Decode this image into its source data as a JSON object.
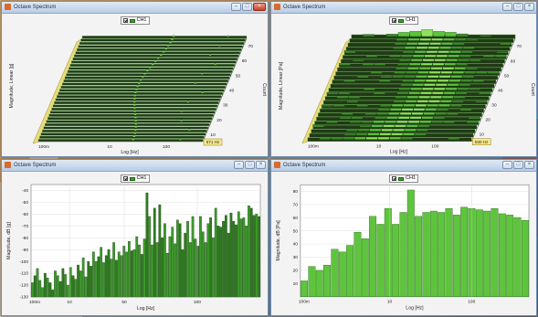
{
  "windows": [
    {
      "title": "Octave Spectrum",
      "legend": "CH1",
      "kind": "waterfall",
      "ylabel": "Magnitude, Linear [g]",
      "xlabel": "Log [Hz]",
      "zlabel": "Count",
      "xticks": [
        "100m",
        "10",
        "100"
      ],
      "zticks": [
        "10",
        "20",
        "30",
        "40",
        "50",
        "60",
        "70"
      ],
      "cursor_label": "571 Hz",
      "render_style": "sparse"
    },
    {
      "title": "Octave Spectrum",
      "legend": "CH1",
      "kind": "waterfall",
      "ylabel": "Magnitude, Linear [Pa]",
      "xlabel": "Log [Hz]",
      "zlabel": "Count",
      "xticks": [
        "100m",
        "10",
        "100"
      ],
      "zticks": [
        "10",
        "20",
        "30",
        "40",
        "50",
        "60",
        "70"
      ],
      "cursor_label": "500 Hz",
      "render_style": "dense"
    },
    {
      "title": "Octave Spectrum",
      "legend": "CH1",
      "kind": "bar",
      "ylabel": "Magnitude, dB [g]",
      "xlabel": "Log [Hz]",
      "xticks": [
        "100m",
        "10",
        "50",
        "100"
      ],
      "yticks": [
        "-40",
        "-50",
        "-60",
        "-70",
        "-80",
        "-90",
        "-100",
        "-110",
        "-120",
        "-130"
      ]
    },
    {
      "title": "Octave Spectrum",
      "legend": "CH1",
      "kind": "bar",
      "ylabel": "Magnitude, dB [Pa]",
      "xlabel": "Log [Hz]",
      "xticks": [
        "100m",
        "10",
        "100"
      ],
      "yticks": [
        "80",
        "70",
        "60",
        "50",
        "40",
        "30",
        "20",
        "10"
      ]
    }
  ],
  "chart_data": [
    {
      "type": "area",
      "title": "Octave Spectrum",
      "xlabel": "Log [Hz]",
      "ylabel": "Magnitude, Linear [g]",
      "zlabel": "Count",
      "x": [
        0.1,
        10,
        100
      ],
      "z": [
        10,
        20,
        30,
        40,
        50,
        60,
        70
      ],
      "legend": "CH1"
    },
    {
      "type": "area",
      "title": "Octave Spectrum",
      "xlabel": "Log [Hz]",
      "ylabel": "Magnitude, Linear [Pa]",
      "zlabel": "Count",
      "x": [
        0.1,
        10,
        100
      ],
      "z": [
        10,
        20,
        30,
        40,
        50,
        60,
        70
      ],
      "legend": "CH1"
    },
    {
      "type": "bar",
      "title": "Octave Spectrum",
      "xlabel": "Log [Hz]",
      "ylabel": "Magnitude, dB [g]",
      "ylim": [
        -130,
        -35
      ],
      "series": [
        {
          "name": "CH1",
          "values": [
            -118,
            -112,
            -106,
            -116,
            -122,
            -110,
            -114,
            -118,
            -124,
            -108,
            -112,
            -117,
            -106,
            -111,
            -120,
            -105,
            -112,
            -115,
            -103,
            -108,
            -97,
            -113,
            -100,
            -104,
            -92,
            -100,
            -96,
            -88,
            -101,
            -95,
            -90,
            -98,
            -84,
            -99,
            -92,
            -95,
            -87,
            -92,
            -83,
            -91,
            -90,
            -79,
            -86,
            -94,
            -81,
            -42,
            -62,
            -86,
            -55,
            -84,
            -52,
            -80,
            -68,
            -93,
            -79,
            -71,
            -85,
            -65,
            -68,
            -90,
            -76,
            -66,
            -84,
            -62,
            -81,
            -87,
            -62,
            -75,
            -84,
            -68,
            -63,
            -80,
            -55,
            -70,
            -71,
            -66,
            -61,
            -76,
            -59,
            -66,
            -69,
            -58,
            -64,
            -63,
            -70,
            -53,
            -55,
            -61,
            -60,
            -62
          ]
        }
      ]
    },
    {
      "type": "bar",
      "title": "Octave Spectrum",
      "xlabel": "Log [Hz]",
      "ylabel": "Magnitude, dB [Pa]",
      "ylim": [
        0,
        85
      ],
      "series": [
        {
          "name": "CH1",
          "values": [
            12,
            23,
            20,
            24,
            36,
            34,
            39,
            49,
            44,
            61,
            55,
            67,
            55,
            64,
            81,
            61,
            64,
            65,
            64,
            67,
            62,
            68,
            67,
            66,
            65,
            67,
            63,
            62,
            60,
            58
          ]
        }
      ]
    }
  ]
}
